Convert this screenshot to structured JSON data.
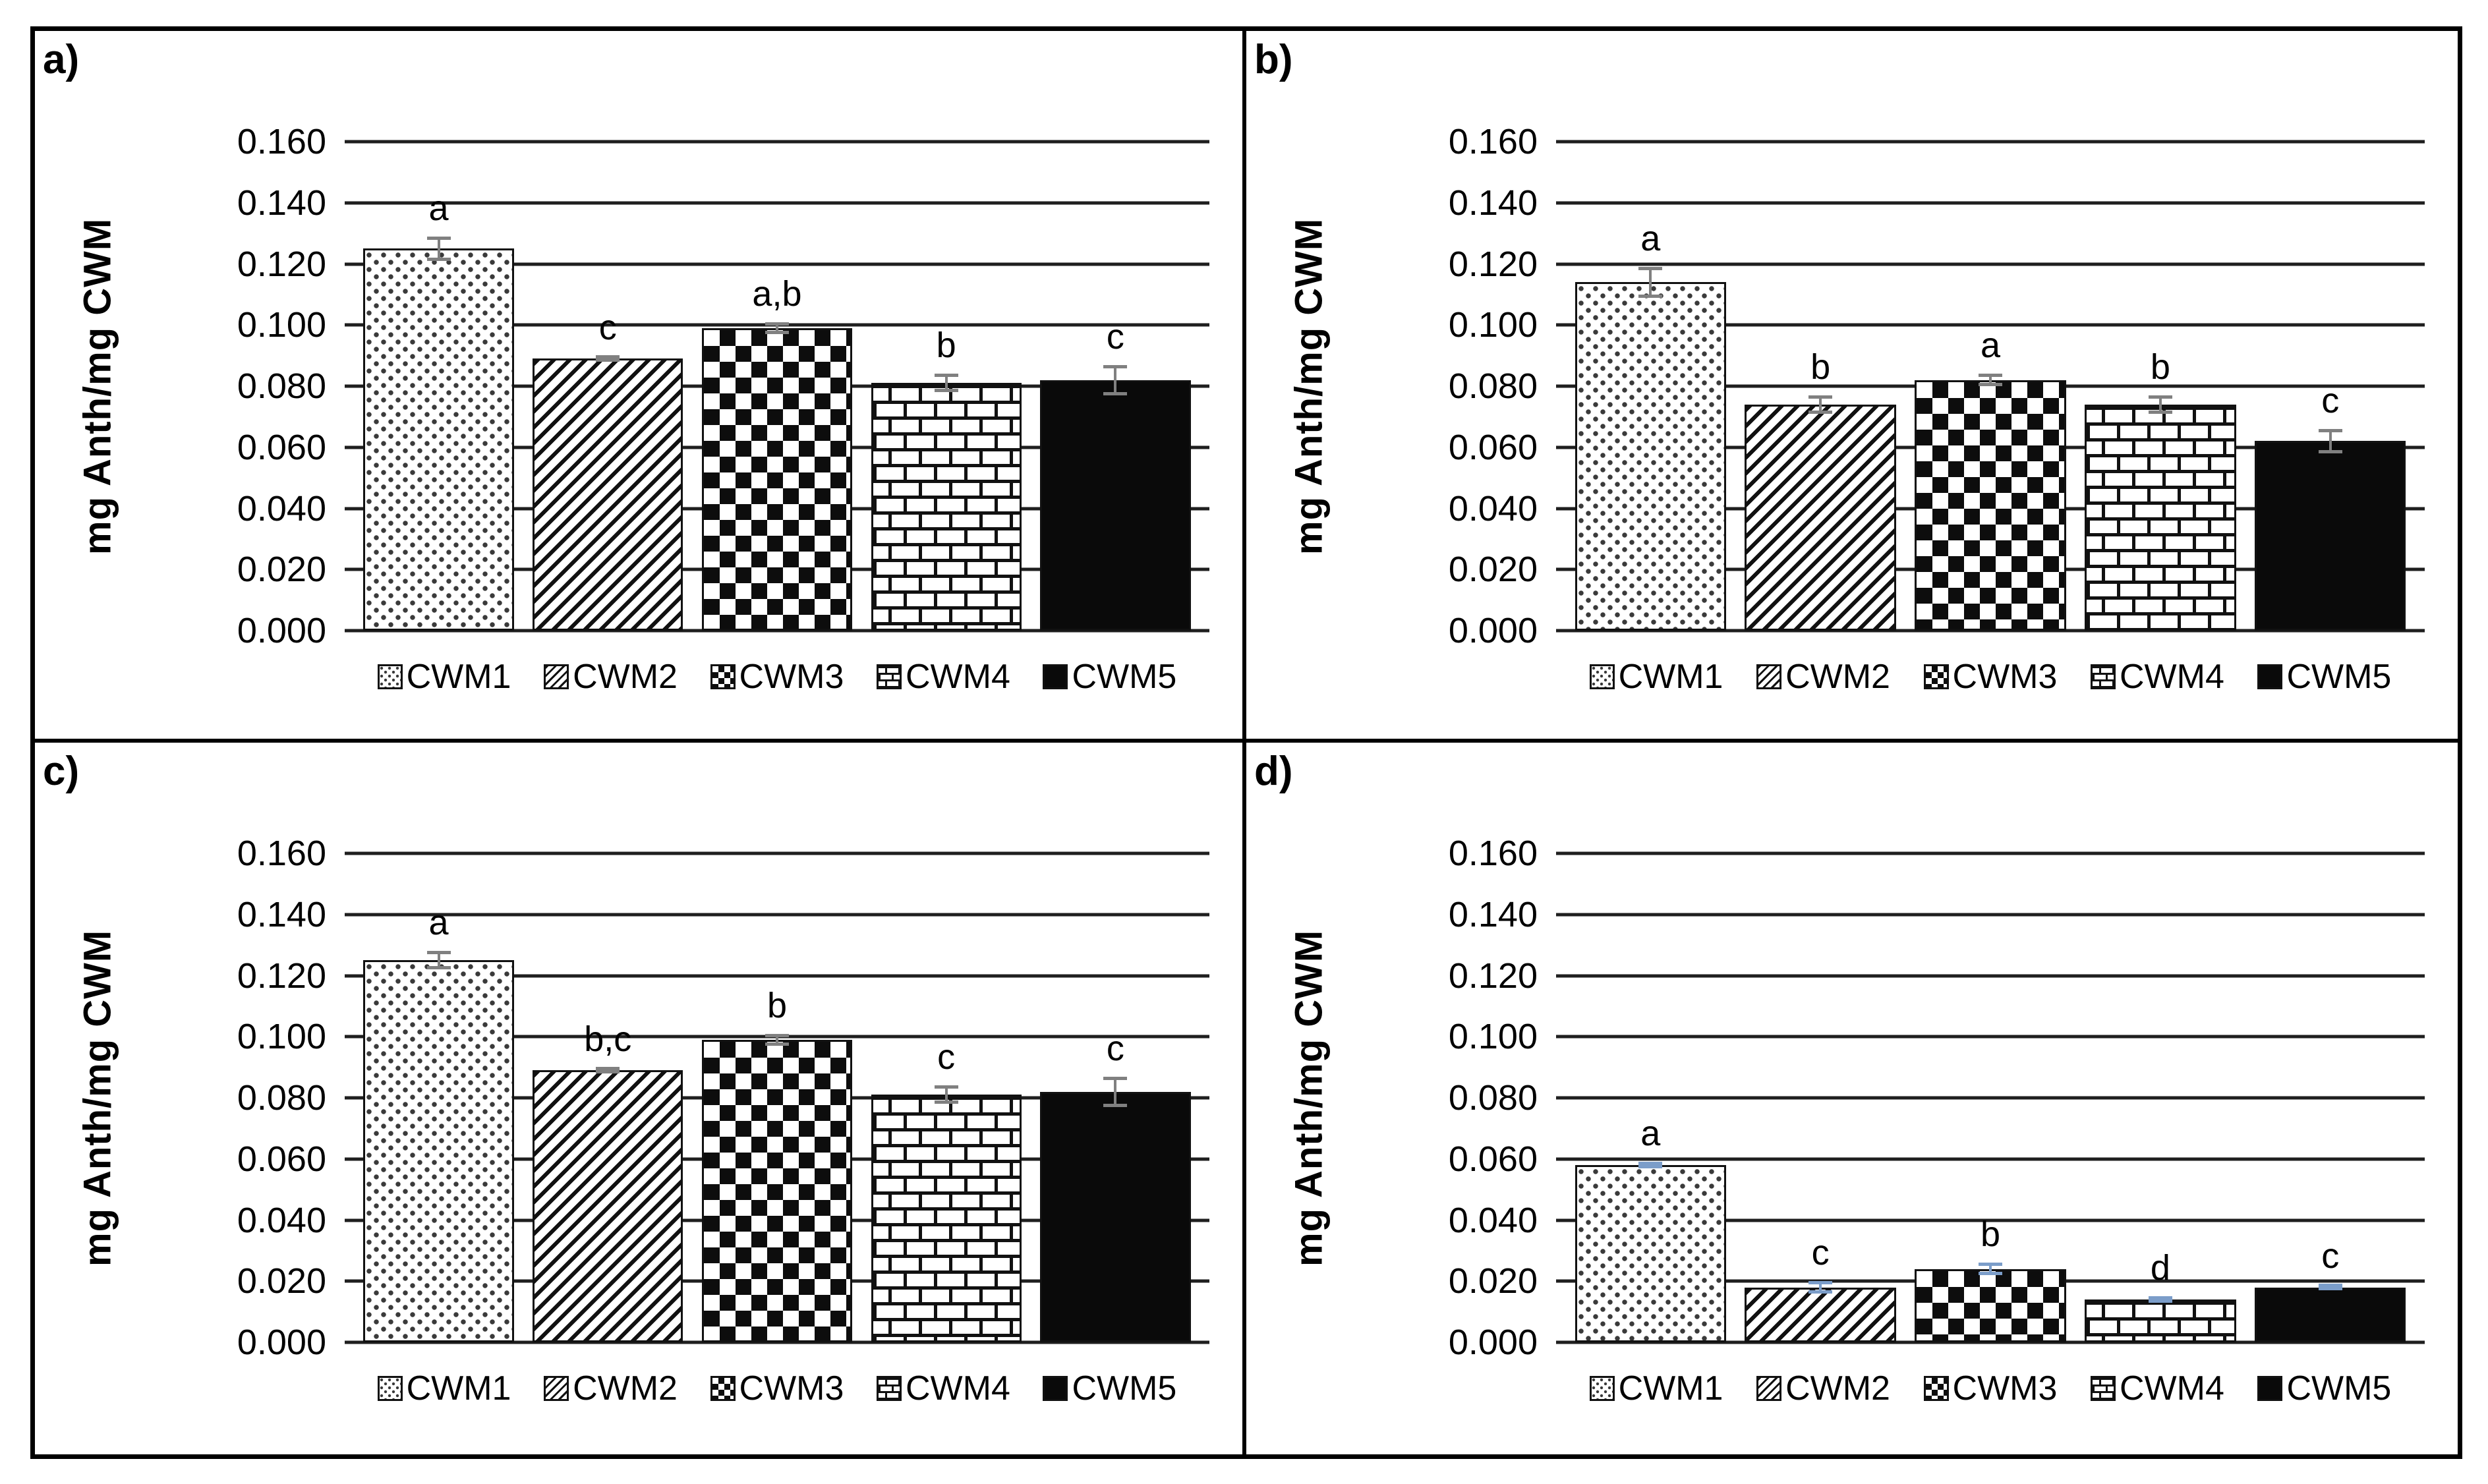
{
  "figure_title": "",
  "chart_data": [
    {
      "type": "bar",
      "panel_label": "a)",
      "ylabel": "mg Anth/mg CWM",
      "ylim": [
        0,
        0.16
      ],
      "ytick_step": 0.02,
      "ytick_labels": [
        "0.160",
        "0.140",
        "0.120",
        "0.100",
        "0.080",
        "0.060",
        "0.040",
        "0.020",
        "0.000"
      ],
      "categories": [
        "CWM1",
        "CWM2",
        "CWM3",
        "CWM4",
        "CWM5"
      ],
      "values": [
        0.125,
        0.089,
        0.099,
        0.081,
        0.082
      ],
      "errors": [
        0.004,
        0.001,
        0.002,
        0.003,
        0.005
      ],
      "sig_letters": [
        "a",
        "c",
        "a,b",
        "b",
        "c"
      ],
      "bar_patterns": [
        "dots",
        "diag",
        "check",
        "bricks",
        "solid"
      ],
      "error_bar_color": "#808080",
      "grid": "horizontal",
      "legend_position": "bottom"
    },
    {
      "type": "bar",
      "panel_label": "b)",
      "ylabel": "mg Anth/mg CWM",
      "ylim": [
        0,
        0.16
      ],
      "ytick_step": 0.02,
      "ytick_labels": [
        "0.160",
        "0.140",
        "0.120",
        "0.100",
        "0.080",
        "0.060",
        "0.040",
        "0.020",
        "0.000"
      ],
      "categories": [
        "CWM1",
        "CWM2",
        "CWM3",
        "CWM4",
        "CWM5"
      ],
      "values": [
        0.114,
        0.074,
        0.082,
        0.074,
        0.062
      ],
      "errors": [
        0.005,
        0.003,
        0.002,
        0.003,
        0.004
      ],
      "sig_letters": [
        "a",
        "b",
        "a",
        "b",
        "c"
      ],
      "bar_patterns": [
        "dots",
        "diag",
        "check",
        "bricks",
        "solid"
      ],
      "error_bar_color": "#808080",
      "grid": "horizontal",
      "legend_position": "bottom"
    },
    {
      "type": "bar",
      "panel_label": "c)",
      "ylabel": "mg Anth/mg CWM",
      "ylim": [
        0,
        0.16
      ],
      "ytick_step": 0.02,
      "ytick_labels": [
        "0.160",
        "0.140",
        "0.120",
        "0.100",
        "0.080",
        "0.060",
        "0.040",
        "0.020",
        "0.000"
      ],
      "categories": [
        "CWM1",
        "CWM2",
        "CWM3",
        "CWM4",
        "CWM5"
      ],
      "values": [
        0.125,
        0.089,
        0.099,
        0.081,
        0.082
      ],
      "errors": [
        0.003,
        0.001,
        0.002,
        0.003,
        0.005
      ],
      "sig_letters": [
        "a",
        "b,c",
        "b",
        "c",
        "c"
      ],
      "bar_patterns": [
        "dots",
        "diag",
        "check",
        "bricks",
        "solid"
      ],
      "error_bar_color": "#808080",
      "grid": "horizontal",
      "legend_position": "bottom"
    },
    {
      "type": "bar",
      "panel_label": "d)",
      "ylabel": "mg Anth/mg CWM",
      "ylim": [
        0,
        0.16
      ],
      "ytick_step": 0.02,
      "ytick_labels": [
        "0.160",
        "0.140",
        "0.120",
        "0.100",
        "0.080",
        "0.060",
        "0.040",
        "0.020",
        "0.000"
      ],
      "categories": [
        "CWM1",
        "CWM2",
        "CWM3",
        "CWM4",
        "CWM5"
      ],
      "values": [
        0.058,
        0.018,
        0.024,
        0.014,
        0.018
      ],
      "errors": [
        0.001,
        0.002,
        0.002,
        0.001,
        0.001
      ],
      "sig_letters": [
        "a",
        "c",
        "b",
        "d",
        "c"
      ],
      "bar_patterns": [
        "dots",
        "diag",
        "check",
        "bricks",
        "solid"
      ],
      "error_bar_color": "#7b9dc9",
      "grid": "horizontal",
      "legend_position": "bottom"
    }
  ]
}
